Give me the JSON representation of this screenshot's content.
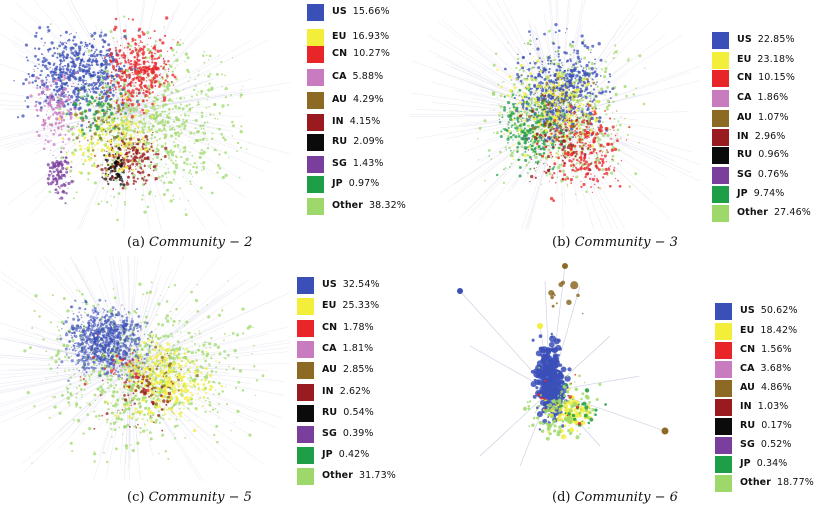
{
  "colors": {
    "US": "#3b4fb8",
    "EU": "#f2ee3a",
    "CN": "#e8262a",
    "CA": "#c97bc0",
    "AU": "#8c6a24",
    "IN": "#9a1b1f",
    "RU": "#0b0b0b",
    "SG": "#7a3e9d",
    "JP": "#1f9e48",
    "Other": "#9fd86a"
  },
  "panels": [
    {
      "caption": {
        "label": "(a)",
        "math": "Community − 2"
      },
      "legend": [
        {
          "code": "US",
          "pct": "15.66%"
        },
        {
          "code": "EU",
          "pct": "16.93%"
        },
        {
          "code": "CN",
          "pct": "10.27%"
        },
        {
          "code": "CA",
          "pct": "5.88%"
        },
        {
          "code": "AU",
          "pct": "4.29%"
        },
        {
          "code": "IN",
          "pct": "4.15%"
        },
        {
          "code": "RU",
          "pct": "2.09%"
        },
        {
          "code": "SG",
          "pct": "1.43%"
        },
        {
          "code": "JP",
          "pct": "0.97%"
        },
        {
          "code": "Other",
          "pct": "38.32%"
        }
      ]
    },
    {
      "caption": {
        "label": "(b)",
        "math": "Community − 3"
      },
      "legend": [
        {
          "code": "US",
          "pct": "22.85%"
        },
        {
          "code": "EU",
          "pct": "23.18%"
        },
        {
          "code": "CN",
          "pct": "10.15%"
        },
        {
          "code": "CA",
          "pct": "1.86%"
        },
        {
          "code": "AU",
          "pct": "1.07%"
        },
        {
          "code": "IN",
          "pct": "2.96%"
        },
        {
          "code": "RU",
          "pct": "0.96%"
        },
        {
          "code": "SG",
          "pct": "0.76%"
        },
        {
          "code": "JP",
          "pct": "9.74%"
        },
        {
          "code": "Other",
          "pct": "27.46%"
        }
      ]
    },
    {
      "caption": {
        "label": "(c)",
        "math": "Community − 5"
      },
      "legend": [
        {
          "code": "US",
          "pct": "32.54%"
        },
        {
          "code": "EU",
          "pct": "25.33%"
        },
        {
          "code": "CN",
          "pct": "1.78%"
        },
        {
          "code": "CA",
          "pct": "1.81%"
        },
        {
          "code": "AU",
          "pct": "2.85%"
        },
        {
          "code": "IN",
          "pct": "2.62%"
        },
        {
          "code": "RU",
          "pct": "0.54%"
        },
        {
          "code": "SG",
          "pct": "0.39%"
        },
        {
          "code": "JP",
          "pct": "0.42%"
        },
        {
          "code": "Other",
          "pct": "31.73%"
        }
      ]
    },
    {
      "caption": {
        "label": "(d)",
        "math": "Community − 6"
      },
      "legend": [
        {
          "code": "US",
          "pct": "50.62%"
        },
        {
          "code": "EU",
          "pct": "18.42%"
        },
        {
          "code": "CN",
          "pct": "1.56%"
        },
        {
          "code": "CA",
          "pct": "3.68%"
        },
        {
          "code": "AU",
          "pct": "4.86%"
        },
        {
          "code": "IN",
          "pct": "1.03%"
        },
        {
          "code": "RU",
          "pct": "0.17%"
        },
        {
          "code": "SG",
          "pct": "0.52%"
        },
        {
          "code": "JP",
          "pct": "0.34%"
        },
        {
          "code": "Other",
          "pct": "18.77%"
        }
      ]
    }
  ]
}
